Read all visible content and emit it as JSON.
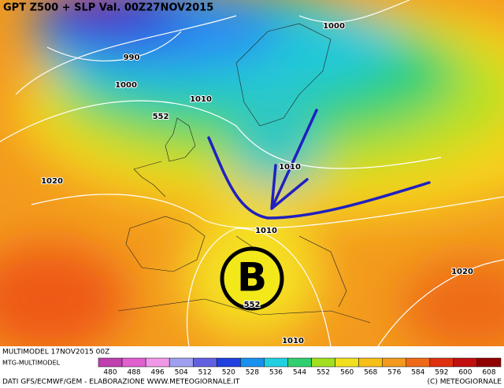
{
  "header": {
    "title": "GPT Z500 + SLP Val. 00Z27NOV2015"
  },
  "contour_labels": [
    {
      "text": "1000"
    },
    {
      "text": "990"
    },
    {
      "text": "1000"
    },
    {
      "text": "1010"
    },
    {
      "text": "552"
    },
    {
      "text": "1020"
    },
    {
      "text": "1010"
    },
    {
      "text": "1010"
    },
    {
      "text": "1020"
    },
    {
      "text": "552"
    },
    {
      "text": "1010"
    }
  ],
  "marker": {
    "text": "B"
  },
  "footer": {
    "run": "MULTIMODEL 17NOV2015 00Z",
    "model": "MTG-MULTIMODEL",
    "source": "DATI GFS/ECMWF/GEM - ELABORAZIONE WWW.METEOGIORNALE.IT",
    "copyright": "(C) METEOGIORNALE"
  },
  "legend": {
    "values": [
      480,
      488,
      496,
      504,
      512,
      520,
      528,
      536,
      544,
      552,
      560,
      568,
      576,
      584,
      592,
      600,
      608
    ]
  }
}
